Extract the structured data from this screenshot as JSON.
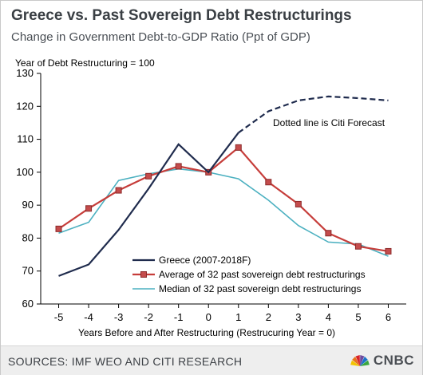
{
  "header": {
    "title": "Greece vs. Past Sovereign Debt Restructurings",
    "subtitle": "Change in Government Debt-to-GDP Ratio (Ppt of GDP)"
  },
  "footer": {
    "source": "SOURCES: IMF WEO AND CITI RESEARCH",
    "brand": "CNBC",
    "brand_icon": "peacock-icon",
    "brand_colors": [
      "#f3c300",
      "#e8731c",
      "#d8232a",
      "#6e4a9e",
      "#1a73c9",
      "#3aa63f"
    ]
  },
  "chart_data": {
    "type": "line",
    "ylabel": "Year of Debt Restructuring = 100",
    "xlabel": "Years Before and After Restructuring (Restrucuring Year = 0)",
    "x": [
      -5,
      -4,
      -3,
      -2,
      -1,
      0,
      1,
      2,
      3,
      4,
      5,
      6
    ],
    "ylim": [
      60,
      130
    ],
    "yticks": [
      60,
      70,
      80,
      90,
      100,
      110,
      120,
      130
    ],
    "annotation": "Dotted line is Citi Forecast",
    "legend_position": "bottom-center",
    "series": [
      {
        "name": "Greece (2007-2018F)",
        "color": "#1f2b4d",
        "style": "solid-then-dashed",
        "forecast_from_x": 1,
        "values": [
          68.5,
          72.0,
          82.5,
          95.0,
          108.5,
          100.0,
          112.0,
          118.5,
          121.8,
          123.0,
          122.5,
          121.8
        ]
      },
      {
        "name": "Average of 32 past sovereign debt restructurings",
        "color": "#c63d3a",
        "marker": "square",
        "marker_fill": "#c44c4c",
        "marker_edge": "#8c2a2a",
        "values": [
          82.8,
          89.0,
          94.5,
          98.8,
          101.8,
          100.0,
          107.5,
          97.0,
          90.3,
          81.5,
          77.5,
          76.0
        ]
      },
      {
        "name": "Median of 32 past sovereign debt restructurings",
        "color": "#4bb0c0",
        "values": [
          81.5,
          84.8,
          97.5,
          99.5,
          101.0,
          100.0,
          98.0,
          91.5,
          83.8,
          78.8,
          78.2,
          74.5
        ]
      }
    ]
  }
}
